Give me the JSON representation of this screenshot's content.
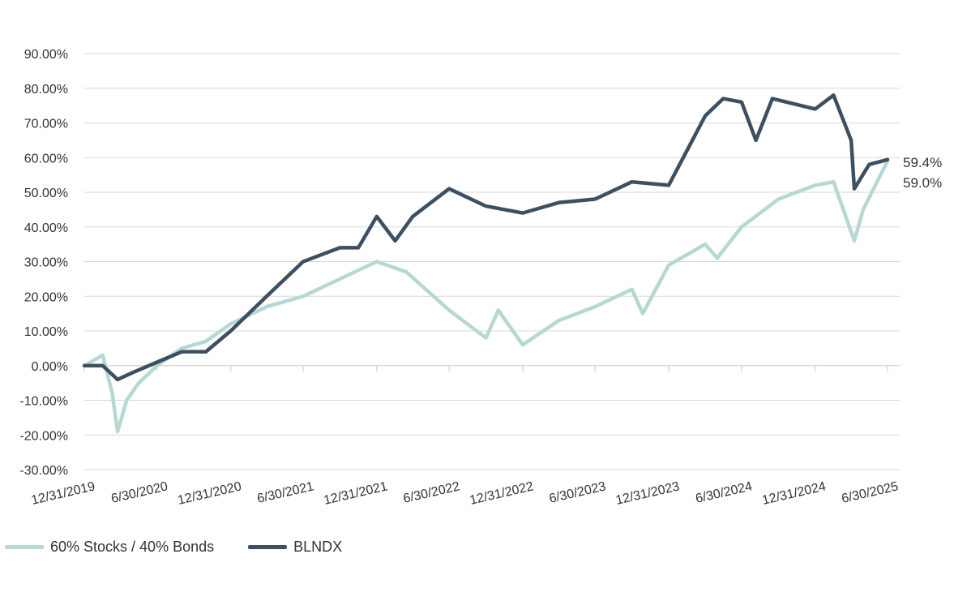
{
  "chart_data": {
    "type": "line",
    "title": "",
    "xlabel": "",
    "ylabel": "",
    "x_tick_labels": [
      "12/31/2019",
      "6/30/2020",
      "12/31/2020",
      "6/30/2021",
      "12/31/2021",
      "6/30/2022",
      "12/31/2022",
      "6/30/2023",
      "12/31/2023",
      "6/30/2024",
      "12/31/2024",
      "6/30/2025"
    ],
    "y_tick_labels": [
      "90.00%",
      "80.00%",
      "70.00%",
      "60.00%",
      "50.00%",
      "40.00%",
      "30.00%",
      "20.00%",
      "10.00%",
      "0.00%",
      "-10.00%",
      "-20.00%",
      "-30.00%"
    ],
    "ylim": [
      -30,
      90
    ],
    "grid": true,
    "legend_position": "bottom-left",
    "end_labels": [
      "59.4%",
      "59.0%"
    ],
    "series": [
      {
        "name": "60% Stocks / 40% Bonds",
        "color": "#b5d8d2",
        "points": [
          [
            "12/31/2019",
            0
          ],
          [
            "2/15/2020",
            3
          ],
          [
            "3/10/2020",
            -8
          ],
          [
            "3/23/2020",
            -19
          ],
          [
            "4/15/2020",
            -10
          ],
          [
            "5/15/2020",
            -5
          ],
          [
            "6/30/2020",
            0
          ],
          [
            "8/31/2020",
            5
          ],
          [
            "10/30/2020",
            7
          ],
          [
            "12/31/2020",
            12
          ],
          [
            "3/31/2021",
            17
          ],
          [
            "6/30/2021",
            20
          ],
          [
            "9/30/2021",
            25
          ],
          [
            "12/31/2021",
            30
          ],
          [
            "3/15/2022",
            27
          ],
          [
            "6/30/2022",
            16
          ],
          [
            "9/30/2022",
            8
          ],
          [
            "10/31/2022",
            16
          ],
          [
            "12/31/2022",
            6
          ],
          [
            "3/31/2023",
            13
          ],
          [
            "6/30/2023",
            17
          ],
          [
            "9/30/2023",
            22
          ],
          [
            "10/27/2023",
            15
          ],
          [
            "12/31/2023",
            29
          ],
          [
            "3/31/2024",
            35
          ],
          [
            "4/30/2024",
            31
          ],
          [
            "6/30/2024",
            40
          ],
          [
            "9/30/2024",
            48
          ],
          [
            "12/31/2024",
            52
          ],
          [
            "2/15/2025",
            53
          ],
          [
            "4/8/2025",
            36
          ],
          [
            "4/30/2025",
            45
          ],
          [
            "6/30/2025",
            59.0
          ]
        ]
      },
      {
        "name": "BLNDX",
        "color": "#3d5061",
        "points": [
          [
            "12/31/2019",
            0
          ],
          [
            "2/15/2020",
            0
          ],
          [
            "3/23/2020",
            -4
          ],
          [
            "4/30/2020",
            -2
          ],
          [
            "6/30/2020",
            1
          ],
          [
            "8/31/2020",
            4
          ],
          [
            "10/30/2020",
            4
          ],
          [
            "12/31/2020",
            10
          ],
          [
            "3/31/2021",
            20
          ],
          [
            "6/30/2021",
            30
          ],
          [
            "9/30/2021",
            34
          ],
          [
            "11/15/2021",
            34
          ],
          [
            "12/31/2021",
            43
          ],
          [
            "2/15/2022",
            36
          ],
          [
            "3/31/2022",
            43
          ],
          [
            "6/30/2022",
            51
          ],
          [
            "9/30/2022",
            46
          ],
          [
            "12/31/2022",
            44
          ],
          [
            "3/31/2023",
            47
          ],
          [
            "6/30/2023",
            48
          ],
          [
            "9/30/2023",
            53
          ],
          [
            "12/31/2023",
            52
          ],
          [
            "3/31/2024",
            72
          ],
          [
            "5/15/2024",
            77
          ],
          [
            "6/30/2024",
            76
          ],
          [
            "8/5/2024",
            65
          ],
          [
            "9/15/2024",
            77
          ],
          [
            "12/31/2024",
            74
          ],
          [
            "2/15/2025",
            78
          ],
          [
            "3/31/2025",
            65
          ],
          [
            "4/8/2025",
            51
          ],
          [
            "5/15/2025",
            58
          ],
          [
            "6/30/2025",
            59.4
          ]
        ]
      }
    ]
  },
  "legend": [
    {
      "label": "60% Stocks / 40% Bonds",
      "color": "#b5d8d2"
    },
    {
      "label": "BLNDX",
      "color": "#3d5061"
    }
  ]
}
